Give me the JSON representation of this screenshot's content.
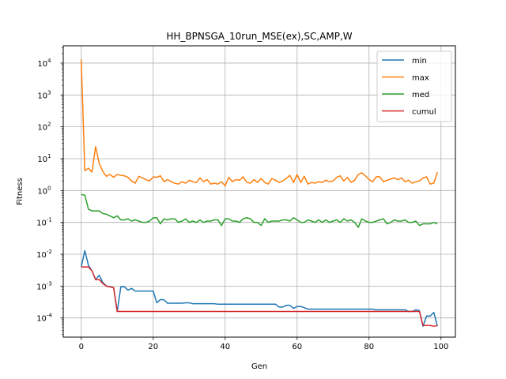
{
  "chart_data": {
    "type": "line",
    "title": "HH_BPNSGA_10run_MSE(ex),SC,AMP,W",
    "xlabel": "Gen",
    "ylabel": "Fitness",
    "xlim": [
      -5,
      104
    ],
    "ylim": [
      2.5e-05,
      35000.0
    ],
    "y_scale": "log",
    "grid": true,
    "legend_position": "top-right",
    "x_ticks": [
      0,
      20,
      40,
      60,
      80,
      100
    ],
    "y_ticks": [
      0.0001,
      0.001,
      0.01,
      0.1,
      1,
      10,
      100,
      1000,
      10000
    ],
    "y_tick_exponents": [
      "-4",
      "-3",
      "-2",
      "-1",
      "0",
      "1",
      "2",
      "3",
      "4"
    ],
    "y_tick_base": "10",
    "x": [
      0,
      1,
      2,
      3,
      4,
      5,
      6,
      7,
      8,
      9,
      10,
      11,
      12,
      13,
      14,
      15,
      16,
      17,
      18,
      19,
      20,
      21,
      22,
      23,
      24,
      25,
      26,
      27,
      28,
      29,
      30,
      31,
      32,
      33,
      34,
      35,
      36,
      37,
      38,
      39,
      40,
      41,
      42,
      43,
      44,
      45,
      46,
      47,
      48,
      49,
      50,
      51,
      52,
      53,
      54,
      55,
      56,
      57,
      58,
      59,
      60,
      61,
      62,
      63,
      64,
      65,
      66,
      67,
      68,
      69,
      70,
      71,
      72,
      73,
      74,
      75,
      76,
      77,
      78,
      79,
      80,
      81,
      82,
      83,
      84,
      85,
      86,
      87,
      88,
      89,
      90,
      91,
      92,
      93,
      94,
      95,
      96,
      97,
      98,
      99
    ],
    "series": [
      {
        "name": "min",
        "color": "#1f77b4",
        "values": [
          0.004,
          0.013,
          0.0045,
          0.003,
          0.0016,
          0.0022,
          0.0013,
          0.001,
          0.00095,
          0.0009,
          0.00016,
          0.00095,
          0.00095,
          0.00075,
          0.00085,
          0.0007,
          0.0007,
          0.0007,
          0.0007,
          0.0007,
          0.0007,
          0.0003,
          0.00038,
          0.00037,
          0.00029,
          0.00029,
          0.00029,
          0.00029,
          0.00029,
          0.0003,
          0.0003,
          0.00028,
          0.00028,
          0.00028,
          0.00028,
          0.00028,
          0.00028,
          0.00028,
          0.00027,
          0.00027,
          0.00027,
          0.00027,
          0.00027,
          0.00027,
          0.00027,
          0.00027,
          0.00027,
          0.00027,
          0.00027,
          0.00027,
          0.00027,
          0.00027,
          0.00027,
          0.00027,
          0.00027,
          0.00022,
          0.00022,
          0.00025,
          0.00025,
          0.0002,
          0.00023,
          0.00023,
          0.00021,
          0.00019,
          0.00019,
          0.00019,
          0.00019,
          0.00019,
          0.00019,
          0.00019,
          0.00019,
          0.00019,
          0.00019,
          0.00019,
          0.00019,
          0.00019,
          0.00019,
          0.00019,
          0.00019,
          0.00019,
          0.00019,
          0.00019,
          0.00018,
          0.00018,
          0.00018,
          0.00018,
          0.00018,
          0.00018,
          0.00018,
          0.00018,
          0.00018,
          0.00016,
          0.00016,
          0.00018,
          0.00017,
          5.5e-05,
          0.000115,
          0.000115,
          0.00015,
          5.5e-05
        ]
      },
      {
        "name": "max",
        "color": "#ff7f0e",
        "values": [
          13000,
          4.2,
          5.0,
          3.8,
          24,
          7,
          4,
          2.8,
          3.2,
          2.6,
          3.2,
          3.0,
          2.9,
          2.6,
          2,
          1.7,
          2.8,
          2.5,
          2.2,
          2.0,
          2.7,
          2.6,
          2.9,
          1.9,
          2.2,
          1.9,
          1.7,
          1.6,
          1.9,
          1.7,
          2.1,
          1.9,
          1.8,
          2.5,
          1.9,
          2.2,
          1.6,
          1.7,
          1.6,
          1.9,
          1.4,
          2.6,
          1.9,
          2.2,
          2.1,
          2.7,
          1.8,
          1.7,
          2.2,
          1.8,
          2.4,
          1.8,
          1.6,
          2.4,
          2.1,
          1.8,
          2.0,
          2.4,
          3.0,
          1.8,
          3.2,
          1.8,
          2.8,
          1.6,
          1.8,
          1.7,
          1.9,
          1.8,
          2.1,
          1.9,
          2.0,
          2.6,
          2.9,
          2.0,
          2.6,
          1.8,
          2.1,
          3.2,
          3.6,
          2.9,
          2.2,
          1.9,
          2.7,
          2.7,
          1.9,
          2.1,
          2.3,
          2.5,
          2.2,
          2.5,
          1.9,
          2.1,
          1.7,
          1.9,
          2.0,
          2.5,
          2.7,
          1.6,
          1.7,
          3.8
        ]
      },
      {
        "name": "med",
        "color": "#2ca02c",
        "values": [
          0.75,
          0.72,
          0.26,
          0.23,
          0.23,
          0.23,
          0.19,
          0.18,
          0.16,
          0.14,
          0.16,
          0.12,
          0.12,
          0.13,
          0.11,
          0.12,
          0.11,
          0.1,
          0.1,
          0.11,
          0.14,
          0.14,
          0.09,
          0.13,
          0.12,
          0.13,
          0.13,
          0.1,
          0.11,
          0.13,
          0.1,
          0.11,
          0.1,
          0.12,
          0.1,
          0.11,
          0.11,
          0.12,
          0.12,
          0.08,
          0.13,
          0.13,
          0.11,
          0.11,
          0.1,
          0.13,
          0.14,
          0.13,
          0.1,
          0.1,
          0.08,
          0.13,
          0.1,
          0.11,
          0.11,
          0.11,
          0.12,
          0.12,
          0.11,
          0.14,
          0.12,
          0.1,
          0.1,
          0.12,
          0.11,
          0.1,
          0.12,
          0.1,
          0.12,
          0.1,
          0.11,
          0.12,
          0.1,
          0.13,
          0.11,
          0.12,
          0.1,
          0.07,
          0.13,
          0.11,
          0.1,
          0.1,
          0.11,
          0.12,
          0.13,
          0.09,
          0.1,
          0.12,
          0.11,
          0.11,
          0.12,
          0.1,
          0.1,
          0.11,
          0.08,
          0.09,
          0.09,
          0.09,
          0.1,
          0.09
        ]
      },
      {
        "name": "cumul",
        "color": "#d62728",
        "values": [
          0.004,
          0.004,
          0.004,
          0.003,
          0.0016,
          0.0016,
          0.0012,
          0.001,
          0.00095,
          0.0009,
          0.00016,
          0.00016,
          0.00016,
          0.00016,
          0.00016,
          0.00016,
          0.00016,
          0.00016,
          0.00016,
          0.00016,
          0.00016,
          0.00016,
          0.00016,
          0.00016,
          0.00016,
          0.00016,
          0.00016,
          0.00016,
          0.00016,
          0.00016,
          0.00016,
          0.00016,
          0.00016,
          0.00016,
          0.00016,
          0.00016,
          0.00016,
          0.00016,
          0.00016,
          0.00016,
          0.00016,
          0.00016,
          0.00016,
          0.00016,
          0.00016,
          0.00016,
          0.00016,
          0.00016,
          0.00016,
          0.00016,
          0.00016,
          0.00016,
          0.00016,
          0.00016,
          0.00016,
          0.00016,
          0.00016,
          0.00016,
          0.00016,
          0.00016,
          0.00016,
          0.00016,
          0.00016,
          0.00016,
          0.00016,
          0.00016,
          0.00016,
          0.00016,
          0.00016,
          0.00016,
          0.00016,
          0.00016,
          0.00016,
          0.00016,
          0.00016,
          0.00016,
          0.00016,
          0.00016,
          0.00016,
          0.00016,
          0.00016,
          0.00016,
          0.00016,
          0.00016,
          0.00016,
          0.00016,
          0.00016,
          0.00016,
          0.00016,
          0.00016,
          0.00016,
          0.00016,
          0.00016,
          0.00016,
          0.00016,
          5.8e-05,
          5.8e-05,
          5.8e-05,
          5.5e-05,
          5.8e-05
        ]
      }
    ]
  }
}
